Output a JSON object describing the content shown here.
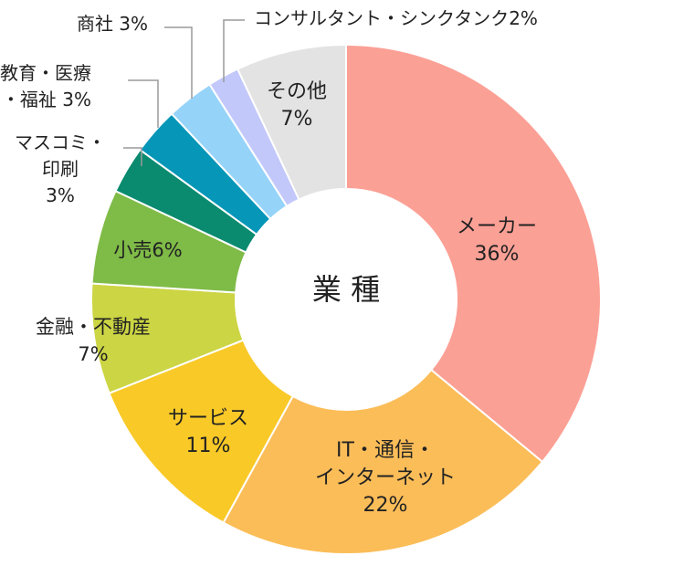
{
  "chart_data": {
    "type": "pie",
    "title": "業 種",
    "slices": [
      {
        "label_lines": [
          "メーカー"
        ],
        "value": 36,
        "value_text": "36%",
        "color": "#fba095"
      },
      {
        "label_lines": [
          "IT・通信・",
          "インターネット"
        ],
        "value": 22,
        "value_text": "22%",
        "color": "#fbbd58"
      },
      {
        "label_lines": [
          "サービス"
        ],
        "value": 11,
        "value_text": "11%",
        "color": "#f9c927"
      },
      {
        "label_lines": [
          "金融・不動産"
        ],
        "value": 7,
        "value_text": "7%",
        "color": "#ccd543"
      },
      {
        "label_lines": [
          "小売"
        ],
        "value": 6,
        "value_text": "6%",
        "color": "#7fbb47"
      },
      {
        "label_lines": [
          "マスコミ・",
          "印刷"
        ],
        "value": 3,
        "value_text": "3%",
        "color": "#0a8a6f"
      },
      {
        "label_lines": [
          "教育・医療",
          "・福祉"
        ],
        "value": 3,
        "value_text": "3%",
        "color": "#0596b8"
      },
      {
        "label_lines": [
          "商社"
        ],
        "value": 3,
        "value_text": "3%",
        "color": "#96d3f9"
      },
      {
        "label_lines": [
          "コンサルタント・シンクタンク"
        ],
        "value": 2,
        "value_text": "2%",
        "color": "#c2c8fa"
      },
      {
        "label_lines": [
          "その他"
        ],
        "value": 7,
        "value_text": "7%",
        "color": "#e3e3e3"
      }
    ]
  }
}
